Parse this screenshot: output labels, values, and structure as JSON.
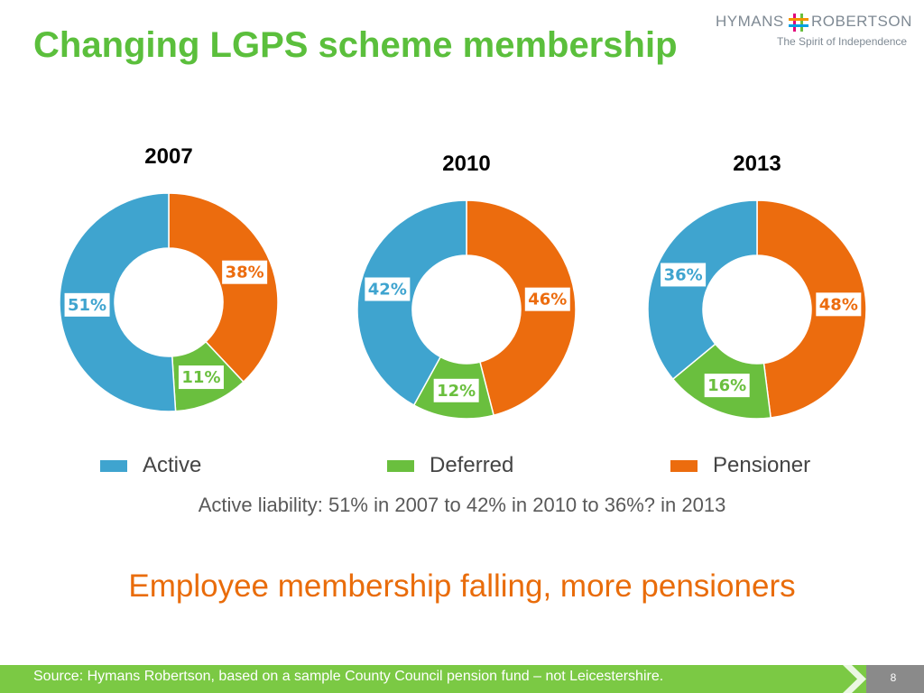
{
  "slide": {
    "title": "Changing LGPS scheme membership",
    "caption": "Active liability: 51% in 2007 to 42% in 2010 to 36%? in 2013",
    "headline": "Employee membership falling, more pensioners",
    "footer": "Source: Hymans Robertson, based on a sample County Council pension fund – not Leicestershire.",
    "page_number": "8"
  },
  "logo": {
    "word_left": "HYMANS",
    "word_right": "ROBERTSON",
    "tagline": "The Spirit of Independence"
  },
  "colors": {
    "active": "#3fa4cf",
    "deferred": "#6abf3e",
    "pensioner": "#ec6c0e",
    "title": "#5bbf3c",
    "headline": "#e96c0a"
  },
  "legend": [
    {
      "label": "Active",
      "color": "#3fa4cf"
    },
    {
      "label": "Deferred",
      "color": "#6abf3e"
    },
    {
      "label": "Pensioner",
      "color": "#ec6c0e"
    }
  ],
  "chart_data": [
    {
      "type": "pie",
      "title": "2007",
      "categories": [
        "Pensioner",
        "Deferred",
        "Active"
      ],
      "values": [
        38,
        11,
        51
      ],
      "labels": [
        "38%",
        "11%",
        "51%"
      ],
      "label_colors": [
        "#ec6c0e",
        "#6abf3e",
        "#3fa4cf"
      ]
    },
    {
      "type": "pie",
      "title": "2010",
      "categories": [
        "Pensioner",
        "Deferred",
        "Active"
      ],
      "values": [
        46,
        12,
        42
      ],
      "labels": [
        "46%",
        "12%",
        "42%"
      ],
      "label_colors": [
        "#ec6c0e",
        "#6abf3e",
        "#3fa4cf"
      ]
    },
    {
      "type": "pie",
      "title": "2013",
      "categories": [
        "Pensioner",
        "Deferred",
        "Active"
      ],
      "values": [
        48,
        16,
        36
      ],
      "labels": [
        "48%",
        "16%",
        "36%"
      ],
      "label_colors": [
        "#ec6c0e",
        "#6abf3e",
        "#3fa4cf"
      ]
    }
  ]
}
